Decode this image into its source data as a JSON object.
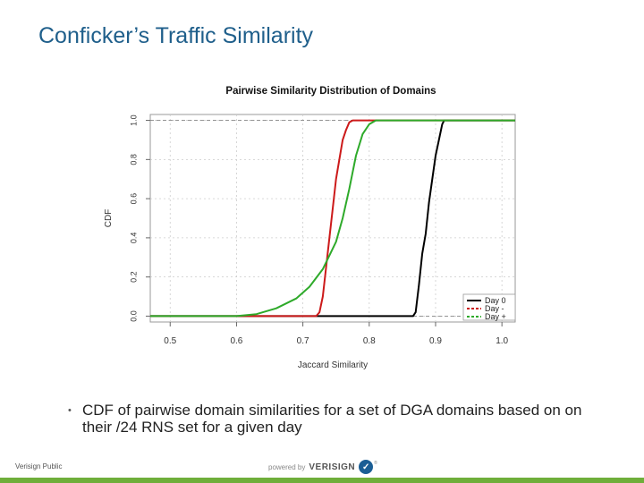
{
  "slide": {
    "title": "Conficker’s Traffic Similarity",
    "bullet_text": "CDF of pairwise domain similarities for a set of DGA domains based on on their /24 RNS set for a given day",
    "footer_left": "Verisign Public",
    "footer_powered": "powered by",
    "footer_brand": "VERISIGN"
  },
  "chart_data": {
    "type": "line",
    "title": "Pairwise Similarity Distribution of Domains",
    "xlabel": "Jaccard Similarity",
    "ylabel": "CDF",
    "xlim": [
      0.47,
      1.02
    ],
    "ylim": [
      -0.03,
      1.03
    ],
    "xticks": [
      "0.5",
      "0.6",
      "0.7",
      "0.8",
      "0.9",
      "1.0"
    ],
    "yticks": [
      "0.0",
      "0.2",
      "0.4",
      "0.6",
      "0.8",
      "1.0"
    ],
    "grid": true,
    "legend_position": "bottom-right",
    "series": [
      {
        "name": "Day 0",
        "color": "#000000",
        "dash": "solid",
        "x": [
          0.46,
          0.866,
          0.87,
          0.875,
          0.88,
          0.885,
          0.89,
          0.895,
          0.9,
          0.905,
          0.91,
          0.913,
          1.02
        ],
        "y": [
          0.0,
          0.0,
          0.02,
          0.16,
          0.32,
          0.42,
          0.58,
          0.7,
          0.82,
          0.9,
          0.98,
          1.0,
          1.0
        ]
      },
      {
        "name": "Day -",
        "color": "#cc1a1a",
        "dash": "solid",
        "x": [
          0.46,
          0.72,
          0.725,
          0.73,
          0.735,
          0.74,
          0.745,
          0.75,
          0.755,
          0.76,
          0.765,
          0.77,
          0.775,
          1.02
        ],
        "y": [
          0.0,
          0.0,
          0.02,
          0.1,
          0.25,
          0.4,
          0.55,
          0.7,
          0.8,
          0.9,
          0.95,
          0.99,
          1.0,
          1.0
        ]
      },
      {
        "name": "Day +",
        "color": "#2eaa2a",
        "dash": "solid",
        "x": [
          0.46,
          0.6,
          0.63,
          0.66,
          0.69,
          0.71,
          0.73,
          0.75,
          0.76,
          0.77,
          0.78,
          0.79,
          0.8,
          0.81,
          1.02
        ],
        "y": [
          0.0,
          0.0,
          0.01,
          0.04,
          0.09,
          0.15,
          0.24,
          0.38,
          0.5,
          0.65,
          0.82,
          0.93,
          0.98,
          1.0,
          1.0
        ]
      }
    ]
  },
  "colors": {
    "title_blue": "#1f5f8b",
    "accent_green": "#6fae3a",
    "brand_blue": "#1b5e95"
  }
}
